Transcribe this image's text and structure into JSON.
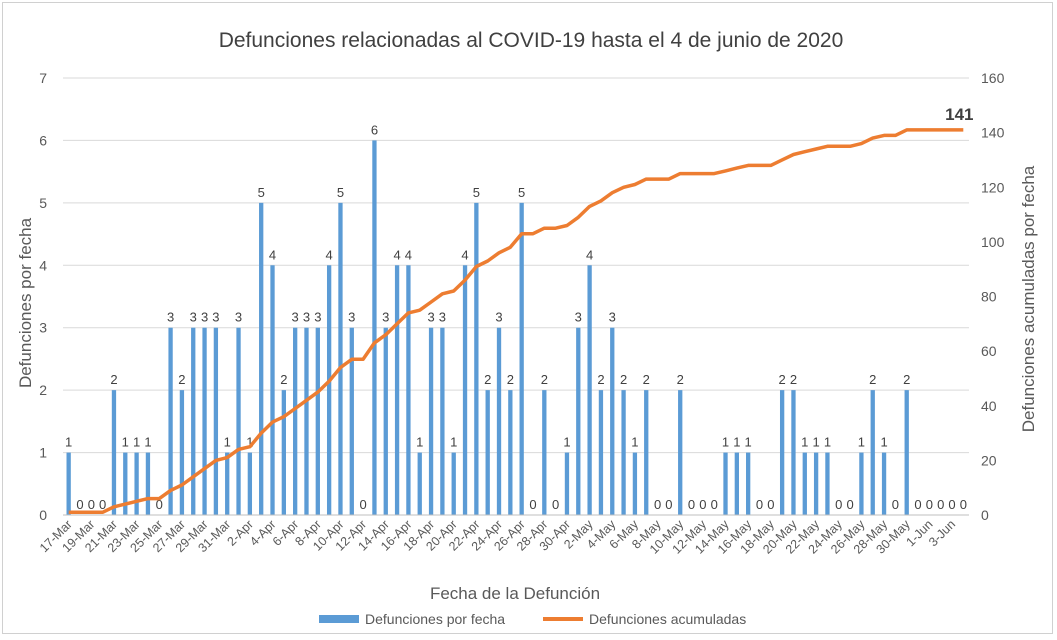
{
  "chart_data": {
    "type": "bar+line",
    "title": "Defunciones relacionadas al COVID-19 hasta el 4 de junio de 2020",
    "xlabel": "Fecha de la Defunción",
    "ylabel_left": "Defunciones por fecha",
    "ylabel_right": "Defunciones acumuladas por fecha",
    "ylim_left": [
      0,
      7
    ],
    "yticks_left": [
      "0",
      "1",
      "2",
      "3",
      "4",
      "5",
      "6",
      "7"
    ],
    "ylim_right": [
      0,
      160
    ],
    "yticks_right": [
      "0",
      "20",
      "40",
      "60",
      "80",
      "100",
      "120",
      "140",
      "160"
    ],
    "x_tick_labels": [
      "17-Mar",
      "19-Mar",
      "21-Mar",
      "23-Mar",
      "25-Mar",
      "27-Mar",
      "29-Mar",
      "31-Mar",
      "2-Apr",
      "4-Apr",
      "6-Apr",
      "8-Apr",
      "10-Apr",
      "12-Apr",
      "14-Apr",
      "16-Apr",
      "18-Apr",
      "20-Apr",
      "22-Apr",
      "24-Apr",
      "26-Apr",
      "28-Apr",
      "30-Apr",
      "2-May",
      "4-May",
      "6-May",
      "8-May",
      "10-May",
      "12-May",
      "14-May",
      "16-May",
      "18-May",
      "20-May",
      "22-May",
      "24-May",
      "26-May",
      "28-May",
      "30-May",
      "1-Jun",
      "3-Jun"
    ],
    "bar_series": {
      "name": "Defunciones por fecha",
      "color": "#5b9bd5",
      "values": [
        1,
        0,
        0,
        0,
        2,
        1,
        1,
        1,
        0,
        3,
        2,
        3,
        3,
        3,
        1,
        3,
        1,
        5,
        4,
        2,
        3,
        3,
        3,
        4,
        5,
        3,
        0,
        6,
        3,
        4,
        4,
        1,
        3,
        3,
        1,
        4,
        5,
        2,
        3,
        2,
        5,
        0,
        2,
        0,
        1,
        3,
        4,
        2,
        3,
        2,
        1,
        2,
        0,
        0,
        2,
        0,
        0,
        0,
        1,
        1,
        1,
        0,
        0,
        2,
        2,
        1,
        1,
        1,
        0,
        0,
        1,
        2,
        1,
        0,
        2,
        0,
        0,
        0,
        0,
        0
      ]
    },
    "line_series": {
      "name": "Defunciones acumuladas",
      "color": "#ed7d31",
      "values": [
        1,
        1,
        1,
        1,
        3,
        4,
        5,
        6,
        6,
        9,
        11,
        14,
        17,
        20,
        21,
        24,
        25,
        30,
        34,
        36,
        39,
        42,
        45,
        49,
        54,
        57,
        57,
        63,
        66,
        70,
        74,
        75,
        78,
        81,
        82,
        86,
        91,
        93,
        96,
        98,
        103,
        103,
        105,
        105,
        106,
        109,
        113,
        115,
        118,
        120,
        121,
        123,
        123,
        123,
        125,
        125,
        125,
        125,
        126,
        127,
        128,
        128,
        128,
        130,
        132,
        133,
        134,
        135,
        135,
        135,
        136,
        138,
        139,
        139,
        141,
        141,
        141,
        141,
        141,
        141
      ]
    },
    "final_label": "141",
    "legend": [
      "Defunciones por fecha",
      "Defunciones acumuladas"
    ],
    "legend_position": "bottom"
  },
  "colors": {
    "bar": "#5b9bd5",
    "line": "#ed7d31",
    "grid": "#d9d9d9",
    "text": "#595959"
  }
}
